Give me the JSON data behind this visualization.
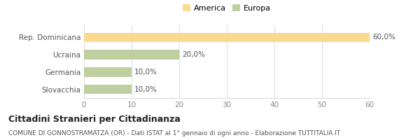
{
  "categories": [
    "Rep. Dominicana",
    "Ucraina",
    "Germania",
    "Slovacchia"
  ],
  "values": [
    60.0,
    20.0,
    10.0,
    10.0
  ],
  "colors": [
    "#FADA8E",
    "#BFCF9F",
    "#BFCF9F",
    "#BFCF9F"
  ],
  "legend_labels": [
    "America",
    "Europa"
  ],
  "legend_colors": [
    "#FADA8E",
    "#BFCF9F"
  ],
  "xlim": [
    0,
    60
  ],
  "xticks": [
    0,
    10,
    20,
    30,
    40,
    50,
    60
  ],
  "bar_labels": [
    "60,0%",
    "20,0%",
    "10,0%",
    "10,0%"
  ],
  "title": "Cittadini Stranieri per Cittadinanza",
  "subtitle": "COMUNE DI GONNOSTRAMATZA (OR) - Dati ISTAT al 1° gennaio di ogni anno - Elaborazione TUTTITALIA.IT",
  "title_fontsize": 9,
  "subtitle_fontsize": 6.5,
  "background_color": "#ffffff",
  "grid_color": "#dddddd"
}
